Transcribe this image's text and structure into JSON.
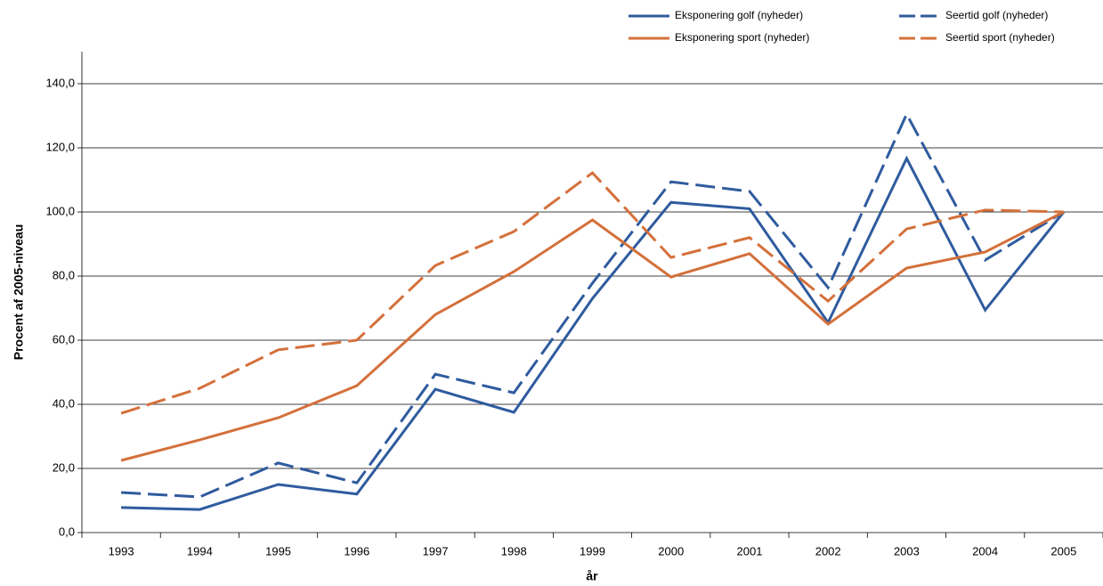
{
  "chart_data": {
    "type": "line",
    "y_label": "Procent af 2005-niveau",
    "x_label": "år",
    "categories": [
      "1993",
      "1994",
      "1995",
      "1996",
      "1997",
      "1998",
      "1999",
      "2000",
      "2001",
      "2002",
      "2003",
      "2004",
      "2005"
    ],
    "series": [
      {
        "name": "Eksponering golf (nyheder)",
        "color": "#2f5b9e",
        "dashed": false,
        "values": [
          7.8,
          7.2,
          15.0,
          12.0,
          44.7,
          37.5,
          73.0,
          103.0,
          101.0,
          65.5,
          116.7,
          69.4,
          100.0
        ]
      },
      {
        "name": "Seertid golf (nyheder)",
        "color": "#2f5b9e",
        "dashed": true,
        "values": [
          12.5,
          11.1,
          21.7,
          15.5,
          49.4,
          43.6,
          77.8,
          109.4,
          106.4,
          76.4,
          130.5,
          85.0,
          100.0
        ]
      },
      {
        "name": "Eksponering sport (nyheder)",
        "color": "#d4703a",
        "dashed": false,
        "values": [
          22.5,
          28.9,
          35.8,
          45.8,
          68.0,
          81.4,
          97.5,
          79.7,
          87.0,
          65.0,
          82.5,
          87.5,
          100.0
        ]
      },
      {
        "name": "Seertid sport (nyheder)",
        "color": "#d4703a",
        "dashed": true,
        "values": [
          37.2,
          45.0,
          57.0,
          60.0,
          83.3,
          93.9,
          112.2,
          85.8,
          92.0,
          72.2,
          94.7,
          100.6,
          100.0
        ]
      }
    ],
    "ylim": [
      0,
      150
    ],
    "yticks": [
      {
        "value": 0,
        "label": "0,0"
      },
      {
        "value": 20,
        "label": "20,0"
      },
      {
        "value": 40,
        "label": "40,0"
      },
      {
        "value": 60,
        "label": "60,0"
      },
      {
        "value": 80,
        "label": "80,0"
      },
      {
        "value": 100,
        "label": "100,0"
      },
      {
        "value": 120,
        "label": "120,0"
      },
      {
        "value": 140,
        "label": "140,0"
      }
    ],
    "grid": true,
    "legend": "top-right"
  }
}
